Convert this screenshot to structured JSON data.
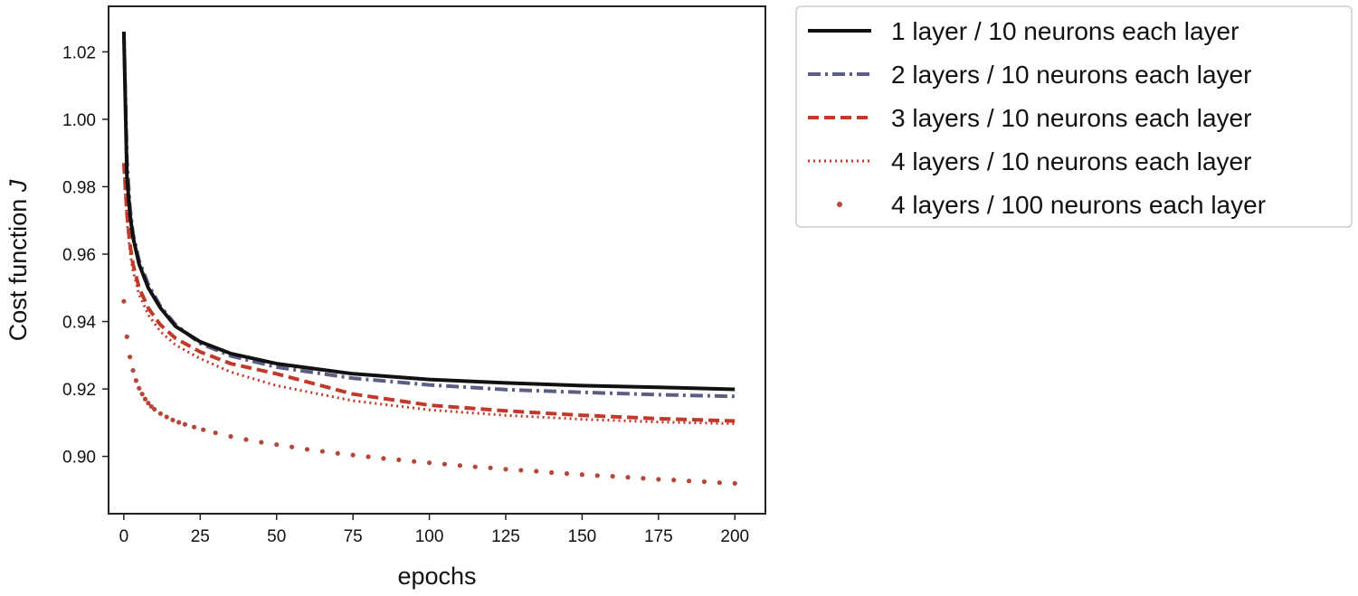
{
  "chart_data": {
    "type": "line",
    "title": "",
    "xlabel": "epochs",
    "ylabel_main": "Cost function ",
    "ylabel_symbol": "J",
    "xlim": [
      -5,
      210
    ],
    "ylim": [
      0.883,
      1.0335
    ],
    "xticks": [
      0,
      25,
      50,
      75,
      100,
      125,
      150,
      175,
      200
    ],
    "yticks": [
      0.9,
      0.92,
      0.94,
      0.96,
      0.98,
      1.0,
      1.02
    ],
    "ytick_labels": [
      "0.90",
      "0.92",
      "0.94",
      "0.96",
      "0.98",
      "1.00",
      "1.02"
    ],
    "grid": false,
    "legend_position": "outside-right",
    "series": [
      {
        "name": "1 layer / 10 neurons each layer",
        "style": "solid",
        "color": "#111111",
        "x": [
          0,
          1,
          2,
          3,
          5,
          8,
          12,
          17,
          25,
          35,
          50,
          75,
          100,
          125,
          150,
          175,
          200
        ],
        "y": [
          1.026,
          0.983,
          0.972,
          0.965,
          0.957,
          0.95,
          0.944,
          0.9385,
          0.934,
          0.9305,
          0.9275,
          0.9245,
          0.9228,
          0.9218,
          0.921,
          0.9205,
          0.9199
        ]
      },
      {
        "name": "2 layers / 10 neurons each layer",
        "style": "dashdot",
        "color": "#5b5f86",
        "x": [
          0,
          1,
          2,
          3,
          5,
          8,
          12,
          17,
          25,
          35,
          50,
          75,
          100,
          125,
          150,
          175,
          200
        ],
        "y": [
          1.026,
          0.988,
          0.974,
          0.966,
          0.958,
          0.951,
          0.9445,
          0.939,
          0.9335,
          0.9298,
          0.9265,
          0.9232,
          0.9212,
          0.9198,
          0.919,
          0.9183,
          0.9178
        ]
      },
      {
        "name": "3 layers / 10 neurons each layer",
        "style": "dashed",
        "color": "#c0392b",
        "x": [
          0,
          1,
          2,
          3,
          5,
          8,
          12,
          17,
          25,
          35,
          50,
          75,
          100,
          125,
          150,
          175,
          200
        ],
        "y": [
          0.987,
          0.972,
          0.963,
          0.957,
          0.95,
          0.944,
          0.939,
          0.935,
          0.931,
          0.9275,
          0.9245,
          0.9185,
          0.9152,
          0.9135,
          0.9122,
          0.9112,
          0.9105
        ]
      },
      {
        "name": "4 layers / 10 neurons each layer",
        "style": "dotted",
        "color": "#c0392b",
        "x": [
          0,
          1,
          2,
          3,
          5,
          8,
          12,
          17,
          25,
          35,
          50,
          75,
          100,
          125,
          150,
          175,
          200
        ],
        "y": [
          0.986,
          0.97,
          0.961,
          0.955,
          0.948,
          0.942,
          0.937,
          0.933,
          0.929,
          0.925,
          0.921,
          0.9165,
          0.9138,
          0.9122,
          0.911,
          0.9102,
          0.9097
        ]
      },
      {
        "name": "4 layers / 100 neurons each layer",
        "style": "markers",
        "color": "#b5473a",
        "x": [
          0,
          1,
          2,
          3,
          4,
          5,
          6,
          7,
          8,
          9,
          10,
          12,
          14,
          16,
          18,
          20,
          23,
          26,
          30,
          35,
          40,
          45,
          50,
          55,
          60,
          65,
          70,
          75,
          80,
          85,
          90,
          95,
          100,
          105,
          110,
          115,
          120,
          125,
          130,
          135,
          140,
          145,
          150,
          155,
          160,
          165,
          170,
          175,
          180,
          185,
          190,
          195,
          200
        ],
        "y": [
          0.946,
          0.9355,
          0.9295,
          0.9255,
          0.9225,
          0.9202,
          0.9185,
          0.917,
          0.9158,
          0.9148,
          0.914,
          0.9127,
          0.9117,
          0.9108,
          0.9101,
          0.9095,
          0.9087,
          0.9079,
          0.907,
          0.9059,
          0.905,
          0.9042,
          0.9035,
          0.9028,
          0.9021,
          0.9015,
          0.9009,
          0.9004,
          0.8999,
          0.8994,
          0.899,
          0.8985,
          0.8981,
          0.8977,
          0.8973,
          0.8969,
          0.8966,
          0.8962,
          0.8959,
          0.8956,
          0.8952,
          0.8949,
          0.8946,
          0.8943,
          0.8941,
          0.8938,
          0.8935,
          0.8932,
          0.893,
          0.8927,
          0.8925,
          0.8922,
          0.892
        ]
      }
    ]
  }
}
